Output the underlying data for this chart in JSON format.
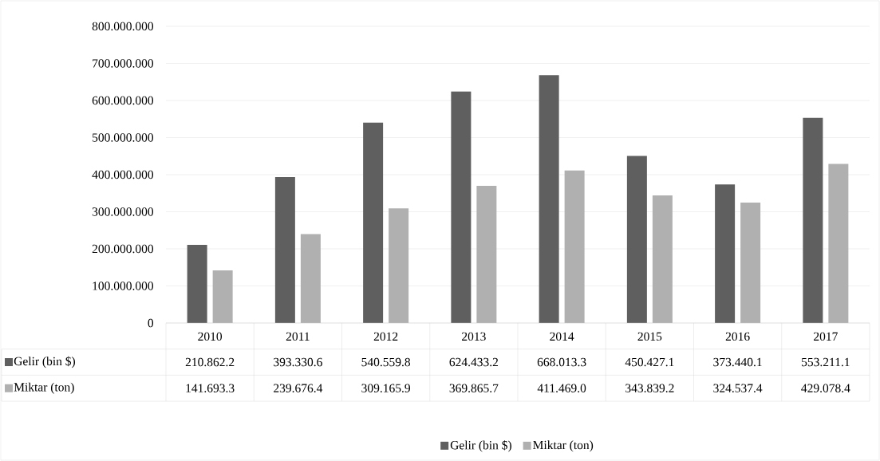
{
  "chart_data": {
    "type": "bar",
    "categories": [
      "2010",
      "2011",
      "2012",
      "2013",
      "2014",
      "2015",
      "2016",
      "2017"
    ],
    "series": [
      {
        "name": "Gelir (bin $)",
        "color": "#5f5f5f",
        "values": [
          210862200,
          393330600,
          540559800,
          624433200,
          668013300,
          450427100,
          373440100,
          553211100
        ],
        "value_labels": [
          "210.862.2",
          "393.330.6",
          "540.559.8",
          "624.433.2",
          "668.013.3",
          "450.427.1",
          "373.440.1",
          "553.211.1"
        ]
      },
      {
        "name": "Miktar (ton)",
        "color": "#b0b0b0",
        "values": [
          141693300,
          239676400,
          309165900,
          369865700,
          411469000,
          343839200,
          324537400,
          429078400
        ],
        "value_labels": [
          "141.693.3",
          "239.676.4",
          "309.165.9",
          "369.865.7",
          "411.469.0",
          "343.839.2",
          "324.537.4",
          "429.078.4"
        ]
      }
    ],
    "ylim": [
      0,
      800000000
    ],
    "yticks": [
      0,
      {
        "value": 100000000,
        "label": "100.000.000"
      },
      {
        "value": 200000000,
        "label": "200.000.000"
      },
      {
        "value": 300000000,
        "label": "300.000.000"
      },
      {
        "value": 400000000,
        "label": "400.000.000"
      },
      {
        "value": 500000000,
        "label": "500.000.000"
      },
      {
        "value": 600000000,
        "label": "600.000.000"
      },
      {
        "value": 700000000,
        "label": "700.000.000"
      },
      {
        "value": 800000000,
        "label": "800.000.000"
      }
    ],
    "grid": "y",
    "legend": "bottom"
  }
}
